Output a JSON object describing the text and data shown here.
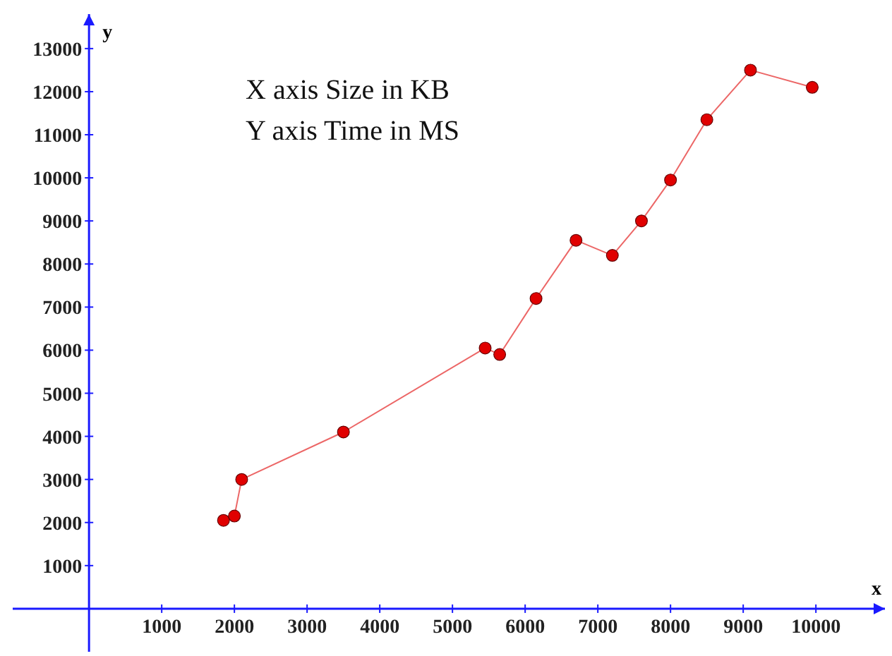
{
  "chart_data": {
    "type": "line",
    "xlabel": "x",
    "ylabel": "y",
    "annotations": [
      "X axis Size in KB",
      "Y axis Time in MS"
    ],
    "x": [
      1850,
      2000,
      2100,
      3500,
      5450,
      5650,
      6150,
      6700,
      7200,
      7600,
      8000,
      8500,
      9100,
      9950
    ],
    "series": [
      {
        "color": "#e00000",
        "values": [
          2050,
          2150,
          3000,
          4100,
          6050,
          5900,
          7200,
          8550,
          8200,
          9000,
          9950,
          11350,
          12500,
          12100
        ]
      }
    ],
    "xlim": [
      -1050,
      10950
    ],
    "ylim": [
      -1000,
      13800
    ],
    "xticks": [
      1000,
      2000,
      3000,
      4000,
      5000,
      6000,
      7000,
      8000,
      9000,
      10000
    ],
    "yticks": [
      1000,
      2000,
      3000,
      4000,
      5000,
      6000,
      7000,
      8000,
      9000,
      10000,
      11000,
      12000,
      13000
    ],
    "marker": "circle",
    "grid": false
  }
}
